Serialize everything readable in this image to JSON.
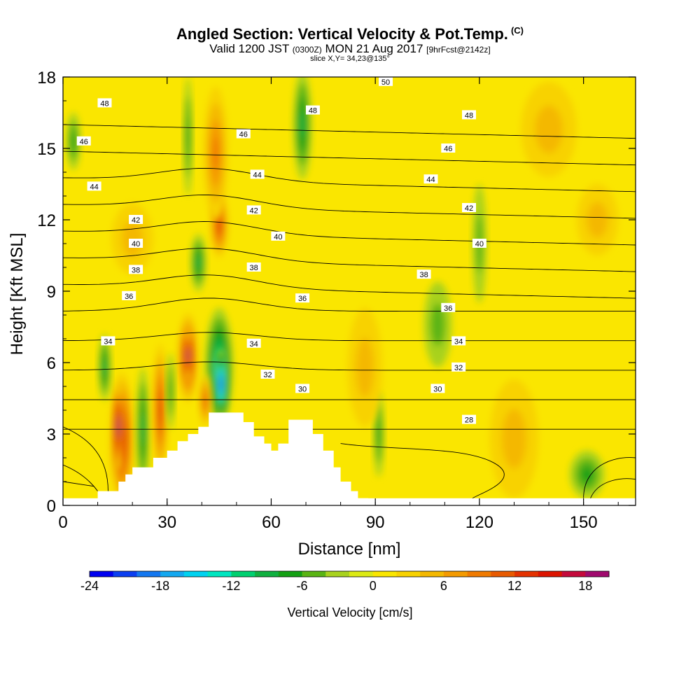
{
  "title": {
    "main": "Angled Section: Vertical Velocity & Pot.Temp.",
    "units_tag": "(C)",
    "valid_prefix": "Valid 1200 JST",
    "valid_utc": "(0300Z)",
    "valid_date": "MON 21 Aug 2017",
    "forecast": "[9hrFcst@2142z]",
    "slice": "slice X,Y= 34,23@135°"
  },
  "chart_data": {
    "type": "heatmap",
    "xlabel": "Distance [nm]",
    "ylabel": "Height [Kft MSL]",
    "xlim": [
      0,
      165
    ],
    "ylim": [
      0,
      18
    ],
    "x_ticks": [
      0,
      30,
      60,
      90,
      120,
      150
    ],
    "y_ticks": [
      0,
      3,
      6,
      9,
      12,
      15,
      18
    ],
    "colorbar": {
      "label": "Vertical Velocity [cm/s]",
      "ticks": [
        -24,
        -18,
        -12,
        -6,
        0,
        6,
        12,
        18
      ],
      "range": [
        -24,
        20
      ],
      "step": 2,
      "colors": [
        "#0000f0",
        "#0c3ff0",
        "#1478f0",
        "#14a8f0",
        "#00d2f0",
        "#00e6c0",
        "#00d070",
        "#10b040",
        "#14a014",
        "#5ab414",
        "#a8d21e",
        "#dcea14",
        "#fae600",
        "#f8d200",
        "#f4b800",
        "#f49a00",
        "#f07a00",
        "#e85a00",
        "#e43200",
        "#dc1400",
        "#c40a3c",
        "#a00a6e"
      ]
    },
    "theta_contours": [
      28,
      30,
      32,
      34,
      36,
      38,
      40,
      42,
      44,
      46,
      48,
      50
    ],
    "theta_labels": [
      {
        "text": "50",
        "x": 93,
        "y": 17.8
      },
      {
        "text": "48",
        "x": 12,
        "y": 16.9
      },
      {
        "text": "48",
        "x": 72,
        "y": 16.6
      },
      {
        "text": "48",
        "x": 117,
        "y": 16.4
      },
      {
        "text": "46",
        "x": 6,
        "y": 15.3
      },
      {
        "text": "46",
        "x": 52,
        "y": 15.6
      },
      {
        "text": "46",
        "x": 111,
        "y": 15.0
      },
      {
        "text": "44",
        "x": 9,
        "y": 13.4
      },
      {
        "text": "44",
        "x": 56,
        "y": 13.9
      },
      {
        "text": "44",
        "x": 106,
        "y": 13.7
      },
      {
        "text": "42",
        "x": 21,
        "y": 12.0
      },
      {
        "text": "42",
        "x": 55,
        "y": 12.4
      },
      {
        "text": "42",
        "x": 117,
        "y": 12.5
      },
      {
        "text": "40",
        "x": 21,
        "y": 11.0
      },
      {
        "text": "40",
        "x": 62,
        "y": 11.3
      },
      {
        "text": "40",
        "x": 120,
        "y": 11.0
      },
      {
        "text": "38",
        "x": 21,
        "y": 9.9
      },
      {
        "text": "38",
        "x": 55,
        "y": 10.0
      },
      {
        "text": "38",
        "x": 104,
        "y": 9.7
      },
      {
        "text": "36",
        "x": 19,
        "y": 8.8
      },
      {
        "text": "36",
        "x": 69,
        "y": 8.7
      },
      {
        "text": "36",
        "x": 111,
        "y": 8.3
      },
      {
        "text": "34",
        "x": 13,
        "y": 6.9
      },
      {
        "text": "34",
        "x": 55,
        "y": 6.8
      },
      {
        "text": "34",
        "x": 114,
        "y": 6.9
      },
      {
        "text": "32",
        "x": 59,
        "y": 5.5
      },
      {
        "text": "32",
        "x": 114,
        "y": 5.8
      },
      {
        "text": "30",
        "x": 69,
        "y": 4.9
      },
      {
        "text": "30",
        "x": 108,
        "y": 4.9
      },
      {
        "text": "28",
        "x": 117,
        "y": 3.6
      }
    ],
    "velocity_cells": [
      {
        "x": 17,
        "y": 2.8,
        "rx": 3.5,
        "ry": 2.8,
        "v": 13
      },
      {
        "x": 16,
        "y": 3.3,
        "rx": 1.6,
        "ry": 1.8,
        "v": 19
      },
      {
        "x": 23,
        "y": 3.2,
        "rx": 1.8,
        "ry": 2.6,
        "v": -7
      },
      {
        "x": 28,
        "y": 4.0,
        "rx": 2.2,
        "ry": 2.8,
        "v": 12
      },
      {
        "x": 36,
        "y": 6.2,
        "rx": 3.0,
        "ry": 1.9,
        "v": 14
      },
      {
        "x": 36,
        "y": 6.3,
        "rx": 1.4,
        "ry": 1.1,
        "v": 19
      },
      {
        "x": 31,
        "y": 4.8,
        "rx": 1.2,
        "ry": 1.6,
        "v": -6
      },
      {
        "x": 45,
        "y": 5.8,
        "rx": 4.0,
        "ry": 2.5,
        "v": -11
      },
      {
        "x": 45.5,
        "y": 5.1,
        "rx": 2.0,
        "ry": 1.5,
        "v": -19
      },
      {
        "x": 41,
        "y": 4.4,
        "rx": 1.8,
        "ry": 1.1,
        "v": 10
      },
      {
        "x": 45,
        "y": 11.8,
        "rx": 2.6,
        "ry": 1.4,
        "v": 12
      },
      {
        "x": 44,
        "y": 14.8,
        "rx": 3.5,
        "ry": 2.8,
        "v": 8
      },
      {
        "x": 39,
        "y": 10.2,
        "rx": 2.2,
        "ry": 1.2,
        "v": -7
      },
      {
        "x": 69,
        "y": 16.0,
        "rx": 2.6,
        "ry": 2.3,
        "v": -8
      },
      {
        "x": 36,
        "y": 15.5,
        "rx": 1.3,
        "ry": 2.5,
        "v": -5
      },
      {
        "x": 3,
        "y": 15.3,
        "rx": 2.0,
        "ry": 1.2,
        "v": -5
      },
      {
        "x": 12,
        "y": 5.8,
        "rx": 1.8,
        "ry": 1.4,
        "v": -7
      },
      {
        "x": 91,
        "y": 3.0,
        "rx": 1.5,
        "ry": 1.8,
        "v": -6
      },
      {
        "x": 151,
        "y": 1.3,
        "rx": 5.0,
        "ry": 1.0,
        "v": -5
      },
      {
        "x": 87,
        "y": 5.8,
        "rx": 5.0,
        "ry": 2.5,
        "v": 4
      },
      {
        "x": 130,
        "y": 2.8,
        "rx": 7.0,
        "ry": 2.5,
        "v": 4
      },
      {
        "x": 140,
        "y": 15.8,
        "rx": 8.0,
        "ry": 2.0,
        "v": 3
      },
      {
        "x": 20,
        "y": 11.2,
        "rx": 6.0,
        "ry": 1.5,
        "v": 3
      },
      {
        "x": 154,
        "y": 12.0,
        "rx": 6.0,
        "ry": 1.5,
        "v": 3
      },
      {
        "x": 108,
        "y": 7.6,
        "rx": 4.0,
        "ry": 1.8,
        "v": -3
      },
      {
        "x": 120,
        "y": 11.0,
        "rx": 2.0,
        "ry": 2.5,
        "v": -3
      }
    ],
    "terrain": [
      [
        0,
        0
      ],
      [
        10,
        0
      ],
      [
        10,
        0.6
      ],
      [
        14,
        0.6
      ],
      [
        14,
        0.6
      ],
      [
        16,
        0.6
      ],
      [
        16,
        1.0
      ],
      [
        18,
        1.0
      ],
      [
        18,
        1.3
      ],
      [
        20,
        1.3
      ],
      [
        20,
        1.6
      ],
      [
        23,
        1.6
      ],
      [
        23,
        1.6
      ],
      [
        26,
        1.6
      ],
      [
        26,
        2.0
      ],
      [
        30,
        2.0
      ],
      [
        30,
        2.3
      ],
      [
        33,
        2.3
      ],
      [
        33,
        2.7
      ],
      [
        36,
        2.7
      ],
      [
        36,
        3.0
      ],
      [
        39,
        3.0
      ],
      [
        39,
        3.3
      ],
      [
        42,
        3.3
      ],
      [
        42,
        3.9
      ],
      [
        52,
        3.9
      ],
      [
        52,
        3.5
      ],
      [
        55,
        3.5
      ],
      [
        55,
        2.9
      ],
      [
        58,
        2.9
      ],
      [
        58,
        2.6
      ],
      [
        60,
        2.6
      ],
      [
        60,
        2.3
      ],
      [
        62,
        2.3
      ],
      [
        62,
        2.6
      ],
      [
        65,
        2.6
      ],
      [
        65,
        3.6
      ],
      [
        72,
        3.6
      ],
      [
        72,
        3.0
      ],
      [
        75,
        3.0
      ],
      [
        75,
        2.3
      ],
      [
        78,
        2.3
      ],
      [
        78,
        1.6
      ],
      [
        80,
        1.6
      ],
      [
        80,
        1.0
      ],
      [
        83,
        1.0
      ],
      [
        83,
        0.6
      ],
      [
        85,
        0.6
      ],
      [
        85,
        0.3
      ],
      [
        88,
        0.3
      ],
      [
        88,
        0
      ],
      [
        165,
        0
      ]
    ]
  }
}
